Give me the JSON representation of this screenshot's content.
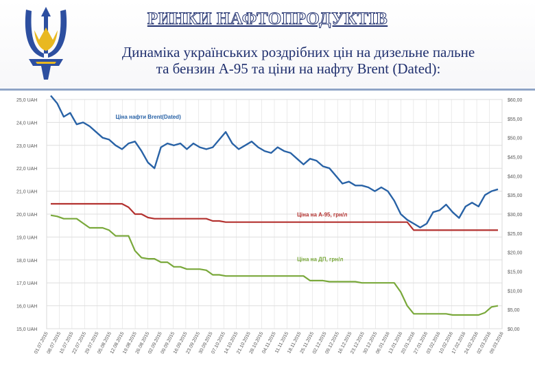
{
  "header": {
    "title": "РИНКИ НАФТОПРОДУКТІВ",
    "subtitle_line1": "Динаміка українських роздрібних цін на дизельне пальне",
    "subtitle_line2": "та бензин А-95 та ціни на нафту Brent (Dated):"
  },
  "colors": {
    "emblem_blue": "#2d4fa0",
    "emblem_gold": "#e9b820",
    "brent": "#2862a6",
    "a95": "#b3312f",
    "dp": "#79a83a",
    "grid": "#dedede"
  },
  "chart_data": {
    "type": "line",
    "title": "",
    "xlabel": "",
    "ylabel": "",
    "ylim_left": [
      15.0,
      25.0
    ],
    "ylim_right": [
      0,
      60
    ],
    "grid": true,
    "legend": "inline labels",
    "left_ticks": [
      "25,0 UAH",
      "24,0 UAH",
      "23,0 UAH",
      "22,0 UAH",
      "21,0 UAH",
      "20,0 UAH",
      "19,0 UAH",
      "18,0 UAH",
      "17,0 UAH",
      "16,0 UAH",
      "15,0 UAH"
    ],
    "right_ticks": [
      "$60,00",
      "$55,00",
      "$50,00",
      "$45,00",
      "$40,00",
      "$35,00",
      "$30,00",
      "$25,00",
      "$20,00",
      "$15,00",
      "$10,00",
      "$5,00",
      "$0,00"
    ],
    "x_labels": [
      "01.07.2015",
      "08.07.2015",
      "15.07.2015",
      "22.07.2015",
      "29.07.2015",
      "05.08.2015",
      "12.08.2015",
      "19.08.2015",
      "26.08.2015",
      "02.09.2015",
      "09.09.2015",
      "16.09.2015",
      "23.09.2015",
      "30.09.2015",
      "07.10.2015",
      "14.10.2015",
      "21.10.2015",
      "28.10.2015",
      "04.11.2015",
      "11.11.2015",
      "18.11.2015",
      "25.11.2015",
      "02.12.2015",
      "09.12.2015",
      "16.12.2015",
      "23.12.2015",
      "30.12.2015",
      "06.01.2016",
      "13.01.2016",
      "20.01.2016",
      "27.01.2016",
      "03.02.2016",
      "10.02.2016",
      "17.02.2016",
      "24.02.2016",
      "02.03.2016",
      "09.03.2016"
    ],
    "series": [
      {
        "name": "Ціна нафти Brent(Dated)",
        "axis": "right",
        "values": [
          61.0,
          59.0,
          55.5,
          56.5,
          53.5,
          54.0,
          53.0,
          51.5,
          50.0,
          49.5,
          48.0,
          47.0,
          48.5,
          49.0,
          46.5,
          43.5,
          42.0,
          47.5,
          48.5,
          48.0,
          48.5,
          47.0,
          48.5,
          47.5,
          47.0,
          47.5,
          49.5,
          51.5,
          48.5,
          47.0,
          48.0,
          49.0,
          47.5,
          46.5,
          46.0,
          47.5,
          46.5,
          46.0,
          44.5,
          43.0,
          44.5,
          44.0,
          42.5,
          42.0,
          40.0,
          38.0,
          38.5,
          37.5,
          37.5,
          37.0,
          36.0,
          37.0,
          36.0,
          33.5,
          30.0,
          28.5,
          27.5,
          26.5,
          27.5,
          30.5,
          31.0,
          32.5,
          30.5,
          29.0,
          32.0,
          33.0,
          32.0,
          35.0,
          36.0,
          36.5
        ],
        "label_x_index": 10,
        "label_value": 55.0
      },
      {
        "name": "Ціна на А-95, грн/л",
        "axis": "left",
        "values": [
          20.45,
          20.45,
          20.45,
          20.45,
          20.45,
          20.45,
          20.45,
          20.45,
          20.45,
          20.45,
          20.45,
          20.45,
          20.3,
          20.0,
          20.0,
          19.85,
          19.8,
          19.8,
          19.8,
          19.8,
          19.8,
          19.8,
          19.8,
          19.8,
          19.8,
          19.7,
          19.7,
          19.65,
          19.65,
          19.65,
          19.65,
          19.65,
          19.65,
          19.65,
          19.65,
          19.65,
          19.65,
          19.65,
          19.65,
          19.65,
          19.65,
          19.65,
          19.65,
          19.65,
          19.65,
          19.65,
          19.65,
          19.65,
          19.65,
          19.65,
          19.65,
          19.65,
          19.65,
          19.65,
          19.65,
          19.65,
          19.3,
          19.3,
          19.3,
          19.3,
          19.3,
          19.3,
          19.3,
          19.3,
          19.3,
          19.3,
          19.3,
          19.3,
          19.3,
          19.3
        ],
        "label_x_index": 38,
        "label_value": 19.9
      },
      {
        "name": "Ціна на ДП, грн/л",
        "axis": "left",
        "values": [
          19.95,
          19.9,
          19.8,
          19.8,
          19.8,
          19.6,
          19.4,
          19.4,
          19.4,
          19.3,
          19.05,
          19.05,
          19.05,
          18.4,
          18.1,
          18.05,
          18.05,
          17.9,
          17.9,
          17.7,
          17.7,
          17.6,
          17.6,
          17.6,
          17.55,
          17.35,
          17.35,
          17.3,
          17.3,
          17.3,
          17.3,
          17.3,
          17.3,
          17.3,
          17.3,
          17.3,
          17.3,
          17.3,
          17.3,
          17.3,
          17.1,
          17.1,
          17.1,
          17.05,
          17.05,
          17.05,
          17.05,
          17.05,
          17.0,
          17.0,
          17.0,
          17.0,
          17.0,
          17.0,
          16.6,
          16.0,
          15.65,
          15.65,
          15.65,
          15.65,
          15.65,
          15.65,
          15.6,
          15.6,
          15.6,
          15.6,
          15.6,
          15.7,
          15.95,
          16.0
        ],
        "label_x_index": 38,
        "label_value": 17.95
      }
    ]
  }
}
